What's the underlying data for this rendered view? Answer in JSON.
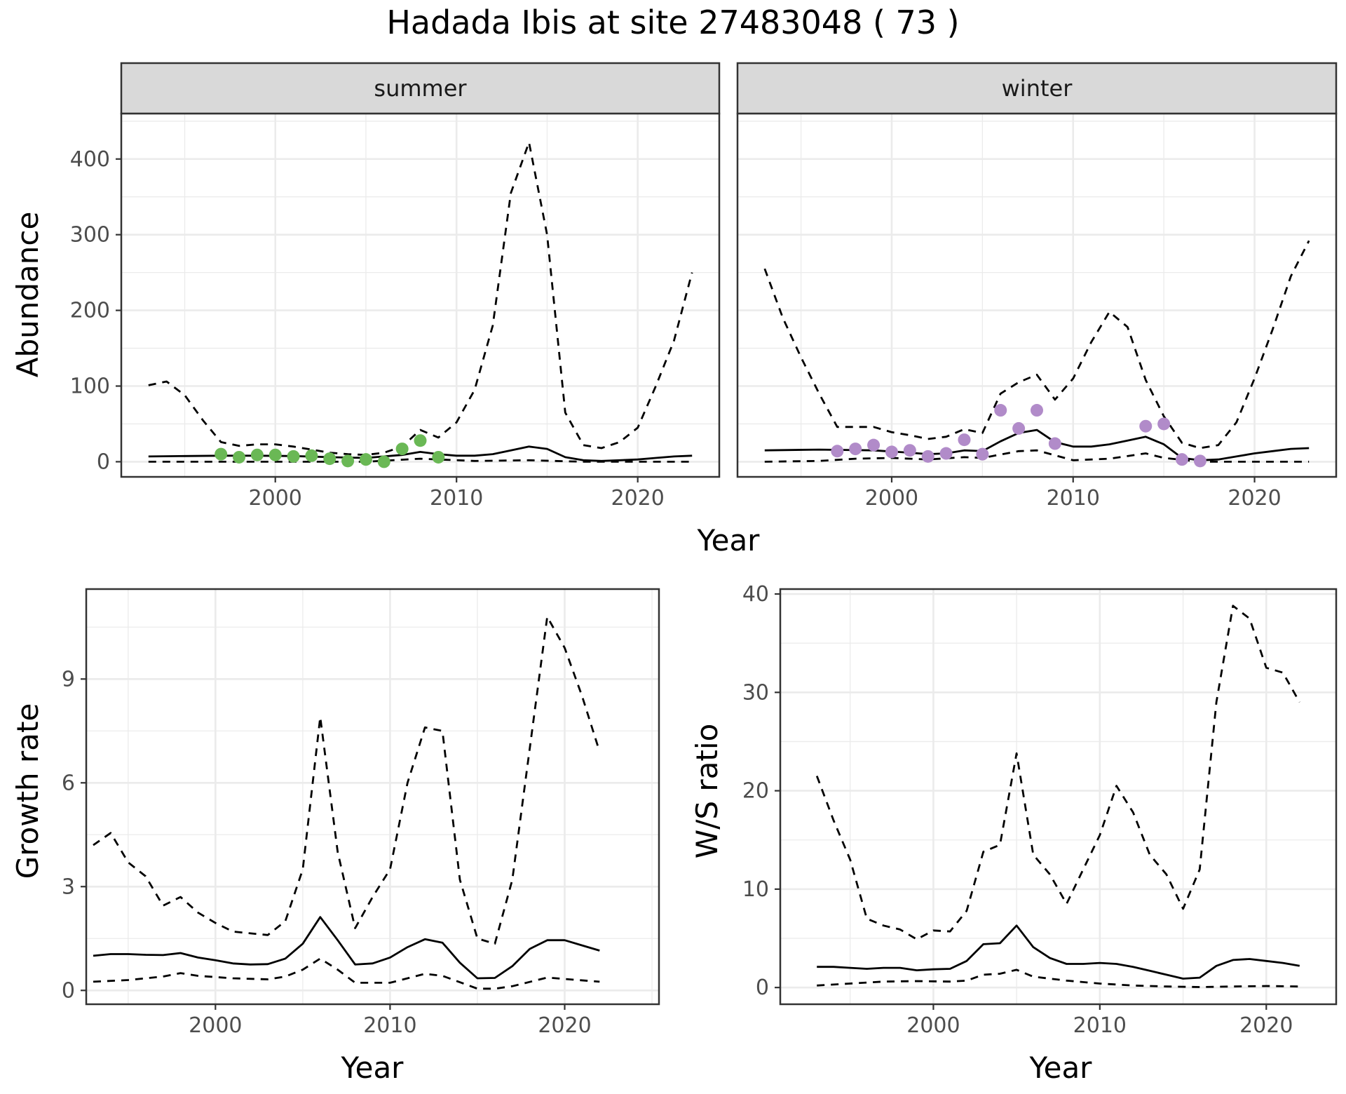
{
  "figure": {
    "title": "Hadada Ibis at site 27483048 ( 73 )",
    "colors": {
      "summer_points": "#6ab855",
      "winter_points": "#b18bc9",
      "line": "#000000",
      "strip_fill": "#d9d9d9",
      "grid": "#ebebeb"
    }
  },
  "chart_data": [
    {
      "id": "abundance-summer",
      "type": "line",
      "facet": "summer",
      "xlabel": "",
      "ylabel": "Abundance",
      "xlim": [
        1991.5,
        2024.5
      ],
      "ylim": [
        -20,
        460
      ],
      "xticks": [
        2000,
        2010,
        2020
      ],
      "yticks": [
        0,
        100,
        200,
        300,
        400
      ],
      "grid": true,
      "series": [
        {
          "role": "estimate",
          "style": "solid",
          "x": [
            1993,
            1995,
            1997,
            1999,
            2001,
            2003,
            2005,
            2007,
            2008,
            2009,
            2010,
            2011,
            2012,
            2013,
            2014,
            2015,
            2016,
            2017,
            2018,
            2019,
            2020,
            2021,
            2022,
            2023
          ],
          "y": [
            7,
            7.5,
            8,
            8,
            7.5,
            6,
            5,
            9,
            13,
            10,
            8,
            8,
            10,
            15,
            20,
            17,
            6,
            2,
            1,
            2,
            3,
            5,
            7,
            8
          ]
        },
        {
          "role": "upper",
          "style": "dashed",
          "x": [
            1993,
            1994,
            1995,
            1996,
            1997,
            1998,
            1999,
            2000,
            2001,
            2002,
            2003,
            2004,
            2005,
            2006,
            2007,
            2008,
            2009,
            2010,
            2011,
            2012,
            2013,
            2014,
            2015,
            2016,
            2017,
            2018,
            2019,
            2020,
            2021,
            2022,
            2023
          ],
          "y": [
            101,
            106,
            88,
            55,
            26,
            21,
            23,
            23,
            20,
            16,
            12,
            10,
            9,
            12,
            20,
            42,
            32,
            52,
            95,
            180,
            355,
            422,
            300,
            65,
            22,
            18,
            26,
            45,
            100,
            160,
            250
          ]
        },
        {
          "role": "lower",
          "style": "dashed",
          "x": [
            1993,
            1996,
            1999,
            2002,
            2005,
            2008,
            2011,
            2014,
            2017,
            2020,
            2023
          ],
          "y": [
            0,
            0,
            0,
            0,
            0,
            4,
            1,
            2,
            0,
            0,
            0
          ]
        },
        {
          "role": "observed",
          "style": "points",
          "color": "#6ab855",
          "x": [
            1997,
            1998,
            1999,
            2000,
            2001,
            2002,
            2003,
            2004,
            2005,
            2006,
            2007,
            2008,
            2009
          ],
          "y": [
            10,
            6,
            9,
            9,
            7,
            8,
            4,
            1,
            3,
            0,
            17,
            28,
            6
          ]
        }
      ]
    },
    {
      "id": "abundance-winter",
      "type": "line",
      "facet": "winter",
      "xlabel": "",
      "ylabel": "",
      "xlim": [
        1991.5,
        2024.5
      ],
      "ylim": [
        -20,
        460
      ],
      "xticks": [
        2000,
        2010,
        2020
      ],
      "yticks": [
        0,
        100,
        200,
        300,
        400
      ],
      "grid": true,
      "series": [
        {
          "role": "estimate",
          "style": "solid",
          "x": [
            1993,
            1996,
            1999,
            2001,
            2002,
            2003,
            2004,
            2005,
            2006,
            2007,
            2008,
            2009,
            2010,
            2011,
            2012,
            2013,
            2014,
            2015,
            2016,
            2017,
            2018,
            2019,
            2020,
            2021,
            2022,
            2023
          ],
          "y": [
            15,
            16,
            15,
            12,
            10,
            11,
            15,
            14,
            27,
            38,
            42,
            26,
            20,
            20,
            23,
            28,
            33,
            23,
            5,
            2,
            3,
            7,
            11,
            14,
            17,
            18
          ]
        },
        {
          "role": "upper",
          "style": "dashed",
          "x": [
            1993,
            1994,
            1995,
            1996,
            1997,
            1998,
            1999,
            2000,
            2001,
            2002,
            2003,
            2004,
            2005,
            2006,
            2007,
            2008,
            2009,
            2010,
            2011,
            2012,
            2013,
            2014,
            2015,
            2016,
            2017,
            2018,
            2019,
            2020,
            2021,
            2022,
            2023
          ],
          "y": [
            255,
            190,
            138,
            90,
            46,
            46,
            46,
            39,
            35,
            30,
            33,
            43,
            38,
            90,
            105,
            115,
            82,
            110,
            158,
            198,
            178,
            108,
            60,
            25,
            18,
            22,
            52,
            110,
            175,
            245,
            292
          ]
        },
        {
          "role": "lower",
          "style": "dashed",
          "x": [
            1993,
            1996,
            1998,
            2000,
            2002,
            2004,
            2005,
            2007,
            2008,
            2010,
            2012,
            2014,
            2015,
            2017,
            2019,
            2021,
            2023
          ],
          "y": [
            0,
            1,
            4,
            5,
            3,
            6,
            5,
            14,
            15,
            2,
            4,
            11,
            5,
            0,
            0,
            0,
            0
          ]
        },
        {
          "role": "observed",
          "style": "points",
          "color": "#b18bc9",
          "x": [
            1997,
            1998,
            1999,
            2000,
            2001,
            2002,
            2003,
            2004,
            2005,
            2006,
            2007,
            2008,
            2009,
            2014,
            2015,
            2016,
            2017
          ],
          "y": [
            14,
            17,
            22,
            13,
            15,
            7,
            11,
            29,
            10,
            68,
            44,
            68,
            24,
            47,
            50,
            3,
            1
          ]
        }
      ]
    },
    {
      "id": "growth-rate",
      "type": "line",
      "xlabel": "Year",
      "ylabel": "Growth rate",
      "xlim": [
        1992.6,
        2025.4
      ],
      "ylim": [
        -0.4,
        11.6
      ],
      "xticks": [
        2000,
        2010,
        2020
      ],
      "yticks": [
        0,
        3,
        6,
        9
      ],
      "grid": true,
      "series": [
        {
          "role": "estimate",
          "style": "solid",
          "x": [
            1993,
            1994,
            1995,
            1996,
            1997,
            1998,
            1999,
            2000,
            2001,
            2002,
            2003,
            2004,
            2005,
            2006,
            2007,
            2008,
            2009,
            2010,
            2011,
            2012,
            2013,
            2014,
            2015,
            2016,
            2017,
            2018,
            2019,
            2020,
            2021,
            2022
          ],
          "y": [
            1.0,
            1.05,
            1.05,
            1.03,
            1.02,
            1.08,
            0.95,
            0.87,
            0.78,
            0.75,
            0.76,
            0.92,
            1.35,
            2.12,
            1.45,
            0.75,
            0.78,
            0.95,
            1.25,
            1.48,
            1.38,
            0.8,
            0.35,
            0.36,
            0.7,
            1.2,
            1.45,
            1.45,
            1.3,
            1.15
          ]
        },
        {
          "role": "upper",
          "style": "dashed",
          "x": [
            1993,
            1994,
            1995,
            1996,
            1997,
            1998,
            1999,
            2000,
            2001,
            2002,
            2003,
            2004,
            2005,
            2006,
            2007,
            2008,
            2009,
            2010,
            2011,
            2012,
            2013,
            2014,
            2015,
            2016,
            2017,
            2018,
            2019,
            2020,
            2021,
            2022
          ],
          "y": [
            4.2,
            4.55,
            3.7,
            3.3,
            2.45,
            2.7,
            2.25,
            1.95,
            1.7,
            1.65,
            1.6,
            2.0,
            3.5,
            7.9,
            4.0,
            1.8,
            2.7,
            3.5,
            6.0,
            7.6,
            7.5,
            3.2,
            1.5,
            1.35,
            3.2,
            7.0,
            10.8,
            9.9,
            8.5,
            6.9
          ]
        },
        {
          "role": "lower",
          "style": "dashed",
          "x": [
            1993,
            1995,
            1997,
            1998,
            1999,
            2001,
            2003,
            2004,
            2005,
            2006,
            2007,
            2008,
            2010,
            2012,
            2013,
            2015,
            2016,
            2017,
            2019,
            2022
          ],
          "y": [
            0.25,
            0.3,
            0.4,
            0.5,
            0.42,
            0.35,
            0.32,
            0.4,
            0.6,
            0.92,
            0.6,
            0.22,
            0.22,
            0.48,
            0.42,
            0.05,
            0.05,
            0.12,
            0.37,
            0.25
          ]
        }
      ]
    },
    {
      "id": "ws-ratio",
      "type": "line",
      "xlabel": "Year",
      "ylabel": "W/S ratio",
      "xlim": [
        1990.8,
        2024.2
      ],
      "ylim": [
        -1.7,
        40.5
      ],
      "xticks": [
        2000,
        2010,
        2020
      ],
      "yticks": [
        0,
        10,
        20,
        30,
        40
      ],
      "grid": true,
      "series": [
        {
          "role": "estimate",
          "style": "solid",
          "x": [
            1993,
            1994,
            1995,
            1996,
            1997,
            1998,
            1999,
            2000,
            2001,
            2002,
            2003,
            2004,
            2005,
            2006,
            2007,
            2008,
            2009,
            2010,
            2011,
            2012,
            2013,
            2014,
            2015,
            2016,
            2017,
            2018,
            2019,
            2020,
            2021,
            2022
          ],
          "y": [
            2.1,
            2.1,
            2.0,
            1.9,
            2.0,
            2.0,
            1.75,
            1.85,
            1.9,
            2.7,
            4.4,
            4.5,
            6.3,
            4.1,
            3.0,
            2.4,
            2.4,
            2.5,
            2.4,
            2.1,
            1.7,
            1.3,
            0.9,
            1.0,
            2.2,
            2.8,
            2.9,
            2.7,
            2.5,
            2.2
          ]
        },
        {
          "role": "upper",
          "style": "dashed",
          "x": [
            1993,
            1994,
            1995,
            1996,
            1997,
            1998,
            1999,
            2000,
            2001,
            2002,
            2003,
            2004,
            2005,
            2006,
            2007,
            2008,
            2009,
            2010,
            2011,
            2012,
            2013,
            2014,
            2015,
            2016,
            2017,
            2018,
            2019,
            2020,
            2021,
            2022
          ],
          "y": [
            21.5,
            17.0,
            13.0,
            7.0,
            6.3,
            5.9,
            4.9,
            5.8,
            5.7,
            7.8,
            13.8,
            14.5,
            23.8,
            13.5,
            11.5,
            8.5,
            12.0,
            15.5,
            20.5,
            17.8,
            13.5,
            11.5,
            8.0,
            12.0,
            29.0,
            38.8,
            37.5,
            32.5,
            32.0,
            29.0
          ]
        },
        {
          "role": "lower",
          "style": "dashed",
          "x": [
            1993,
            1995,
            1997,
            1999,
            2001,
            2002,
            2003,
            2004,
            2005,
            2006,
            2008,
            2010,
            2012,
            2014,
            2016,
            2018,
            2020,
            2022
          ],
          "y": [
            0.2,
            0.4,
            0.6,
            0.65,
            0.6,
            0.7,
            1.3,
            1.4,
            1.8,
            1.1,
            0.7,
            0.4,
            0.2,
            0.1,
            0.05,
            0.1,
            0.15,
            0.1
          ]
        }
      ]
    }
  ]
}
